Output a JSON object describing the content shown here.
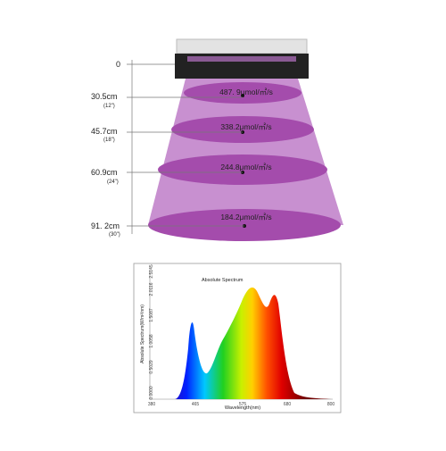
{
  "fixture_levels": [
    {
      "distance": "0"
    },
    {
      "distance": "30.5cm",
      "inches": "(12\")",
      "ppfd": "487. 9μmol/㎡/s"
    },
    {
      "distance": "45.7cm",
      "inches": "(18\")",
      "ppfd": "338.2μmol/㎡/s"
    },
    {
      "distance": "60.9cm",
      "inches": "(24\")",
      "ppfd": "244.8μmol/㎡/s"
    },
    {
      "distance": "91. 2cm",
      "inches": "(30\")",
      "ppfd": "184.2μmol/㎡/s"
    }
  ],
  "spectrum": {
    "title": "Absolute Spectrum",
    "x_label": "Wavelength(nm)",
    "y_label": "Absolute Spectrum(W/m²/nm)",
    "xticks": [
      "380",
      "465",
      "575",
      "680",
      "800"
    ],
    "yticks": [
      "0.0000",
      "0.5029",
      "1.0058",
      "1.5087",
      "2.0116",
      "2.5145"
    ]
  }
}
